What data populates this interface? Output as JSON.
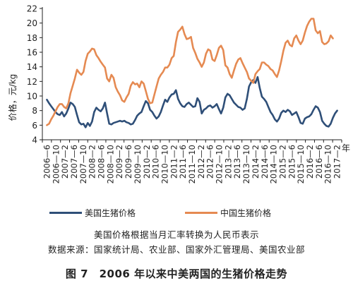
{
  "chart_data": {
    "type": "line",
    "ylabel": "价格，元/kg",
    "xlabel_suffix": "年",
    "ylim": [
      4,
      22
    ],
    "yticks": [
      4,
      6,
      8,
      10,
      12,
      14,
      16,
      18,
      20,
      22
    ],
    "x_tick_labels": [
      "2006—6",
      "2006—10",
      "2007—2",
      "2007—6",
      "2007—10",
      "2008—2",
      "2008—6",
      "2008—10",
      "2009—2",
      "2009—6",
      "2009—10",
      "2010—2",
      "2010—6",
      "2010—10",
      "2011—2",
      "2011—6",
      "2011—10",
      "2012—2",
      "2012—6",
      "2012—10",
      "2013—2",
      "2013—6",
      "2013—10",
      "2014—2",
      "2014—6",
      "2014—10",
      "2015—2",
      "2015—6",
      "2015—10",
      "2016—2",
      "2016—6",
      "2016—10",
      "2017—2"
    ],
    "grid": false,
    "legend_position": "bottom",
    "series": [
      {
        "name": "美国生猪价格",
        "color": "#2f4f78",
        "values": [
          9.5,
          9.0,
          8.6,
          8.2,
          7.8,
          7.5,
          7.4,
          7.8,
          7.2,
          7.6,
          8.3,
          9.1,
          8.9,
          8.5,
          7.4,
          6.4,
          6.1,
          6.2,
          5.7,
          6.3,
          5.9,
          6.5,
          7.8,
          8.4,
          8.1,
          7.9,
          8.3,
          9.1,
          7.6,
          6.2,
          6.1,
          6.3,
          6.4,
          6.5,
          6.6,
          6.5,
          6.6,
          6.4,
          6.3,
          6.1,
          6.2,
          6.7,
          7.3,
          7.6,
          7.8,
          8.6,
          9.3,
          9.0,
          8.1,
          7.8,
          7.3,
          6.9,
          7.2,
          7.8,
          8.7,
          9.5,
          9.2,
          9.8,
          10.2,
          10.3,
          10.8,
          9.6,
          9.0,
          8.6,
          8.5,
          8.9,
          9.1,
          8.8,
          8.5,
          8.6,
          9.7,
          9.2,
          7.6,
          8.1,
          8.3,
          8.6,
          8.7,
          8.4,
          8.6,
          8.9,
          8.2,
          7.6,
          8.4,
          9.8,
          10.3,
          10.1,
          9.6,
          9.1,
          8.8,
          8.5,
          8.4,
          8.1,
          8.3,
          9.6,
          11.3,
          11.9,
          12.2,
          11.8,
          12.6,
          11.1,
          9.9,
          9.6,
          9.2,
          8.5,
          7.8,
          7.4,
          6.8,
          6.5,
          6.9,
          7.7,
          8.0,
          7.8,
          8.1,
          7.9,
          7.4,
          7.6,
          7.8,
          7.1,
          6.3,
          6.2,
          6.9,
          7.1,
          7.2,
          7.5,
          8.1,
          8.6,
          8.4,
          7.8,
          6.6,
          6.2,
          5.9,
          5.8,
          6.2,
          7.0,
          7.6,
          8.0
        ]
      },
      {
        "name": "中国生猪价格",
        "color": "#e58a52",
        "values": [
          6.0,
          6.2,
          6.8,
          7.3,
          7.9,
          8.5,
          8.9,
          8.9,
          8.5,
          8.3,
          9.0,
          10.4,
          11.4,
          12.4,
          13.6,
          13.2,
          12.9,
          13.3,
          14.8,
          15.8,
          16.1,
          16.5,
          16.4,
          15.6,
          15.2,
          14.7,
          14.3,
          13.9,
          12.4,
          12.0,
          12.9,
          12.5,
          11.2,
          10.6,
          10.1,
          9.4,
          9.2,
          9.8,
          10.3,
          11.4,
          11.9,
          11.6,
          11.7,
          11.2,
          12.0,
          11.7,
          10.7,
          9.6,
          9.0,
          9.1,
          10.2,
          11.3,
          12.4,
          12.9,
          13.3,
          13.9,
          13.9,
          14.3,
          15.2,
          15.5,
          17.4,
          18.8,
          19.1,
          19.5,
          18.5,
          17.8,
          17.9,
          18.1,
          16.6,
          15.9,
          15.1,
          14.6,
          14.0,
          14.6,
          15.8,
          16.4,
          16.2,
          15.0,
          14.8,
          15.6,
          16.6,
          16.9,
          16.3,
          14.2,
          13.9,
          13.0,
          12.5,
          13.5,
          14.4,
          15.0,
          15.2,
          14.5,
          13.9,
          13.3,
          12.4,
          12.1,
          11.8,
          13.0,
          13.4,
          13.7,
          14.6,
          14.6,
          14.3,
          14.1,
          13.7,
          13.5,
          13.0,
          12.6,
          13.5,
          14.8,
          16.2,
          17.3,
          17.6,
          17.0,
          16.8,
          17.9,
          18.3,
          17.6,
          17.1,
          17.6,
          18.7,
          19.6,
          20.2,
          20.6,
          20.6,
          19.0,
          18.6,
          18.9,
          17.4,
          17.1,
          17.2,
          17.5,
          18.3,
          17.9
        ]
      }
    ]
  },
  "legend": {
    "us_label": "美国生猪价格",
    "cn_label": "中国生猪价格"
  },
  "notes": {
    "conversion": "美国价格根据当月汇率转换为人民币表示",
    "source": "数据来源：国家统计局、农业部、国家外汇管理局、美国农业部"
  },
  "caption": "图 7　2006 年以来中美两国的生猪价格走势"
}
